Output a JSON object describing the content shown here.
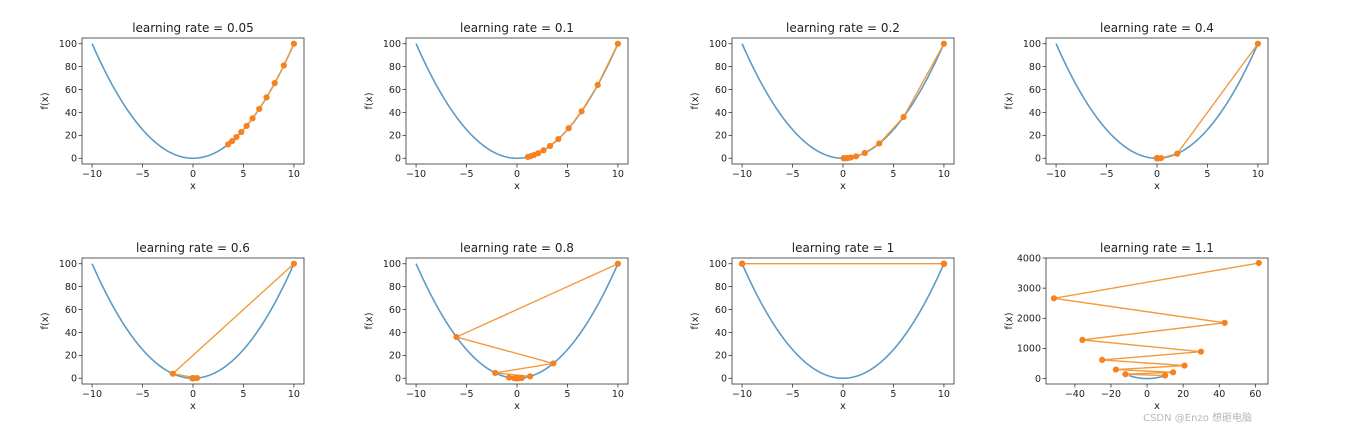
{
  "colors": {
    "curve": "#5b9bc6",
    "path": "#f39a3d",
    "marker": "#f5811f",
    "axis": "#333333"
  },
  "watermark": "CSDN @Enzo 想砸电脑",
  "chart_data": [
    {
      "type": "line",
      "title": "learning rate = 0.05",
      "xlabel": "x",
      "ylabel": "f(x)",
      "xlim": [
        -11,
        11
      ],
      "ylim": [
        -5,
        105
      ],
      "xticks": [
        -10,
        -5,
        0,
        5,
        10
      ],
      "xtick_labels": [
        "−10",
        "−5",
        "0",
        "5",
        "10"
      ],
      "yticks": [
        0,
        20,
        40,
        60,
        80,
        100
      ],
      "ytick_labels": [
        "0",
        "20",
        "40",
        "60",
        "80",
        "100"
      ],
      "series": [
        {
          "kind": "curve",
          "function": "x^2",
          "domain": [
            -10,
            10
          ]
        },
        {
          "kind": "path",
          "x": [
            10,
            9,
            8.1,
            7.29,
            6.561,
            5.905,
            5.314,
            4.783,
            4.305,
            3.874,
            3.487
          ],
          "y": [
            100,
            81,
            65.61,
            53.14,
            43.05,
            34.87,
            28.24,
            22.88,
            18.53,
            15.01,
            12.16
          ]
        }
      ]
    },
    {
      "type": "line",
      "title": "learning rate = 0.1",
      "xlabel": "x",
      "ylabel": "f(x)",
      "xlim": [
        -11,
        11
      ],
      "ylim": [
        -5,
        105
      ],
      "xticks": [
        -10,
        -5,
        0,
        5,
        10
      ],
      "xtick_labels": [
        "−10",
        "−5",
        "0",
        "5",
        "10"
      ],
      "yticks": [
        0,
        20,
        40,
        60,
        80,
        100
      ],
      "ytick_labels": [
        "0",
        "20",
        "40",
        "60",
        "80",
        "100"
      ],
      "series": [
        {
          "kind": "curve",
          "function": "x^2",
          "domain": [
            -10,
            10
          ]
        },
        {
          "kind": "path",
          "x": [
            10,
            8,
            6.4,
            5.12,
            4.096,
            3.277,
            2.621,
            2.097,
            1.678,
            1.342,
            1.074
          ],
          "y": [
            100,
            64,
            40.96,
            26.21,
            16.78,
            10.74,
            6.87,
            4.4,
            2.81,
            1.8,
            1.15
          ]
        }
      ]
    },
    {
      "type": "line",
      "title": "learning rate = 0.2",
      "xlabel": "x",
      "ylabel": "f(x)",
      "xlim": [
        -11,
        11
      ],
      "ylim": [
        -5,
        105
      ],
      "xticks": [
        -10,
        -5,
        0,
        5,
        10
      ],
      "xtick_labels": [
        "−10",
        "−5",
        "0",
        "5",
        "10"
      ],
      "yticks": [
        0,
        20,
        40,
        60,
        80,
        100
      ],
      "ytick_labels": [
        "0",
        "20",
        "40",
        "60",
        "80",
        "100"
      ],
      "series": [
        {
          "kind": "curve",
          "function": "x^2",
          "domain": [
            -10,
            10
          ]
        },
        {
          "kind": "path",
          "x": [
            10,
            6,
            3.6,
            2.16,
            1.296,
            0.778,
            0.467,
            0.28,
            0.168,
            0.101,
            0.06
          ],
          "y": [
            100,
            36,
            12.96,
            4.67,
            1.68,
            0.6,
            0.22,
            0.08,
            0.03,
            0.01,
            0.0
          ]
        }
      ]
    },
    {
      "type": "line",
      "title": "learning rate = 0.4",
      "xlabel": "x",
      "ylabel": "f(x)",
      "xlim": [
        -11,
        11
      ],
      "ylim": [
        -5,
        105
      ],
      "xticks": [
        -10,
        -5,
        0,
        5,
        10
      ],
      "xtick_labels": [
        "−10",
        "−5",
        "0",
        "5",
        "10"
      ],
      "yticks": [
        0,
        20,
        40,
        60,
        80,
        100
      ],
      "ytick_labels": [
        "0",
        "20",
        "40",
        "60",
        "80",
        "100"
      ],
      "series": [
        {
          "kind": "curve",
          "function": "x^2",
          "domain": [
            -10,
            10
          ]
        },
        {
          "kind": "path",
          "x": [
            10,
            2,
            0.4,
            0.08,
            0.016,
            0.003,
            0.001,
            0,
            0,
            0,
            0
          ],
          "y": [
            100,
            4,
            0.16,
            0.01,
            0,
            0,
            0,
            0,
            0,
            0,
            0
          ]
        }
      ]
    },
    {
      "type": "line",
      "title": "learning rate = 0.6",
      "xlabel": "x",
      "ylabel": "f(x)",
      "xlim": [
        -11,
        11
      ],
      "ylim": [
        -5,
        105
      ],
      "xticks": [
        -10,
        -5,
        0,
        5,
        10
      ],
      "xtick_labels": [
        "−10",
        "−5",
        "0",
        "5",
        "10"
      ],
      "yticks": [
        0,
        20,
        40,
        60,
        80,
        100
      ],
      "ytick_labels": [
        "0",
        "20",
        "40",
        "60",
        "80",
        "100"
      ],
      "series": [
        {
          "kind": "curve",
          "function": "x^2",
          "domain": [
            -10,
            10
          ]
        },
        {
          "kind": "path",
          "x": [
            10,
            -2,
            0.4,
            -0.08,
            0.016,
            -0.003,
            0.001,
            0,
            0,
            0,
            0
          ],
          "y": [
            100,
            4,
            0.16,
            0.01,
            0,
            0,
            0,
            0,
            0,
            0,
            0
          ]
        }
      ]
    },
    {
      "type": "line",
      "title": "learning rate = 0.8",
      "xlabel": "x",
      "ylabel": "f(x)",
      "xlim": [
        -11,
        11
      ],
      "ylim": [
        -5,
        105
      ],
      "xticks": [
        -10,
        -5,
        0,
        5,
        10
      ],
      "xtick_labels": [
        "−10",
        "−5",
        "0",
        "5",
        "10"
      ],
      "yticks": [
        0,
        20,
        40,
        60,
        80,
        100
      ],
      "ytick_labels": [
        "0",
        "20",
        "40",
        "60",
        "80",
        "100"
      ],
      "series": [
        {
          "kind": "curve",
          "function": "x^2",
          "domain": [
            -10,
            10
          ]
        },
        {
          "kind": "path",
          "x": [
            10,
            -6,
            3.6,
            -2.16,
            1.296,
            -0.778,
            0.467,
            -0.28,
            0.168,
            -0.101,
            0.06
          ],
          "y": [
            100,
            36,
            12.96,
            4.67,
            1.68,
            0.6,
            0.22,
            0.08,
            0.03,
            0.01,
            0.0
          ]
        }
      ]
    },
    {
      "type": "line",
      "title": "learning rate = 1",
      "xlabel": "x",
      "ylabel": "f(x)",
      "xlim": [
        -11,
        11
      ],
      "ylim": [
        -5,
        105
      ],
      "xticks": [
        -10,
        -5,
        0,
        5,
        10
      ],
      "xtick_labels": [
        "−10",
        "−5",
        "0",
        "5",
        "10"
      ],
      "yticks": [
        0,
        20,
        40,
        60,
        80,
        100
      ],
      "ytick_labels": [
        "0",
        "20",
        "40",
        "60",
        "80",
        "100"
      ],
      "series": [
        {
          "kind": "curve",
          "function": "x^2",
          "domain": [
            -10,
            10
          ]
        },
        {
          "kind": "path",
          "x": [
            10,
            -10,
            10,
            -10,
            10,
            -10,
            10,
            -10,
            10,
            -10,
            10
          ],
          "y": [
            100,
            100,
            100,
            100,
            100,
            100,
            100,
            100,
            100,
            100,
            100
          ]
        }
      ]
    },
    {
      "type": "line",
      "title": "learning rate = 1.1",
      "xlabel": "x",
      "ylabel": "f(x)",
      "xlim": [
        -56,
        67
      ],
      "ylim": [
        -180,
        4000
      ],
      "xticks": [
        -40,
        -20,
        0,
        20,
        40,
        60
      ],
      "xtick_labels": [
        "−40",
        "−20",
        "0",
        "20",
        "40",
        "60"
      ],
      "yticks": [
        0,
        1000,
        2000,
        3000,
        4000
      ],
      "ytick_labels": [
        "0",
        "1000",
        "2000",
        "3000",
        "4000"
      ],
      "series": [
        {
          "kind": "curve",
          "function": "x^2",
          "domain": [
            -10,
            10
          ]
        },
        {
          "kind": "path",
          "x": [
            10,
            -12,
            14.4,
            -17.28,
            20.74,
            -24.88,
            29.86,
            -35.83,
            43.0,
            -51.6,
            61.92
          ],
          "y": [
            100,
            144,
            207.4,
            298.6,
            430.0,
            619.2,
            891.6,
            1283.9,
            1848.8,
            2662.4,
            3833.8
          ]
        }
      ]
    }
  ]
}
